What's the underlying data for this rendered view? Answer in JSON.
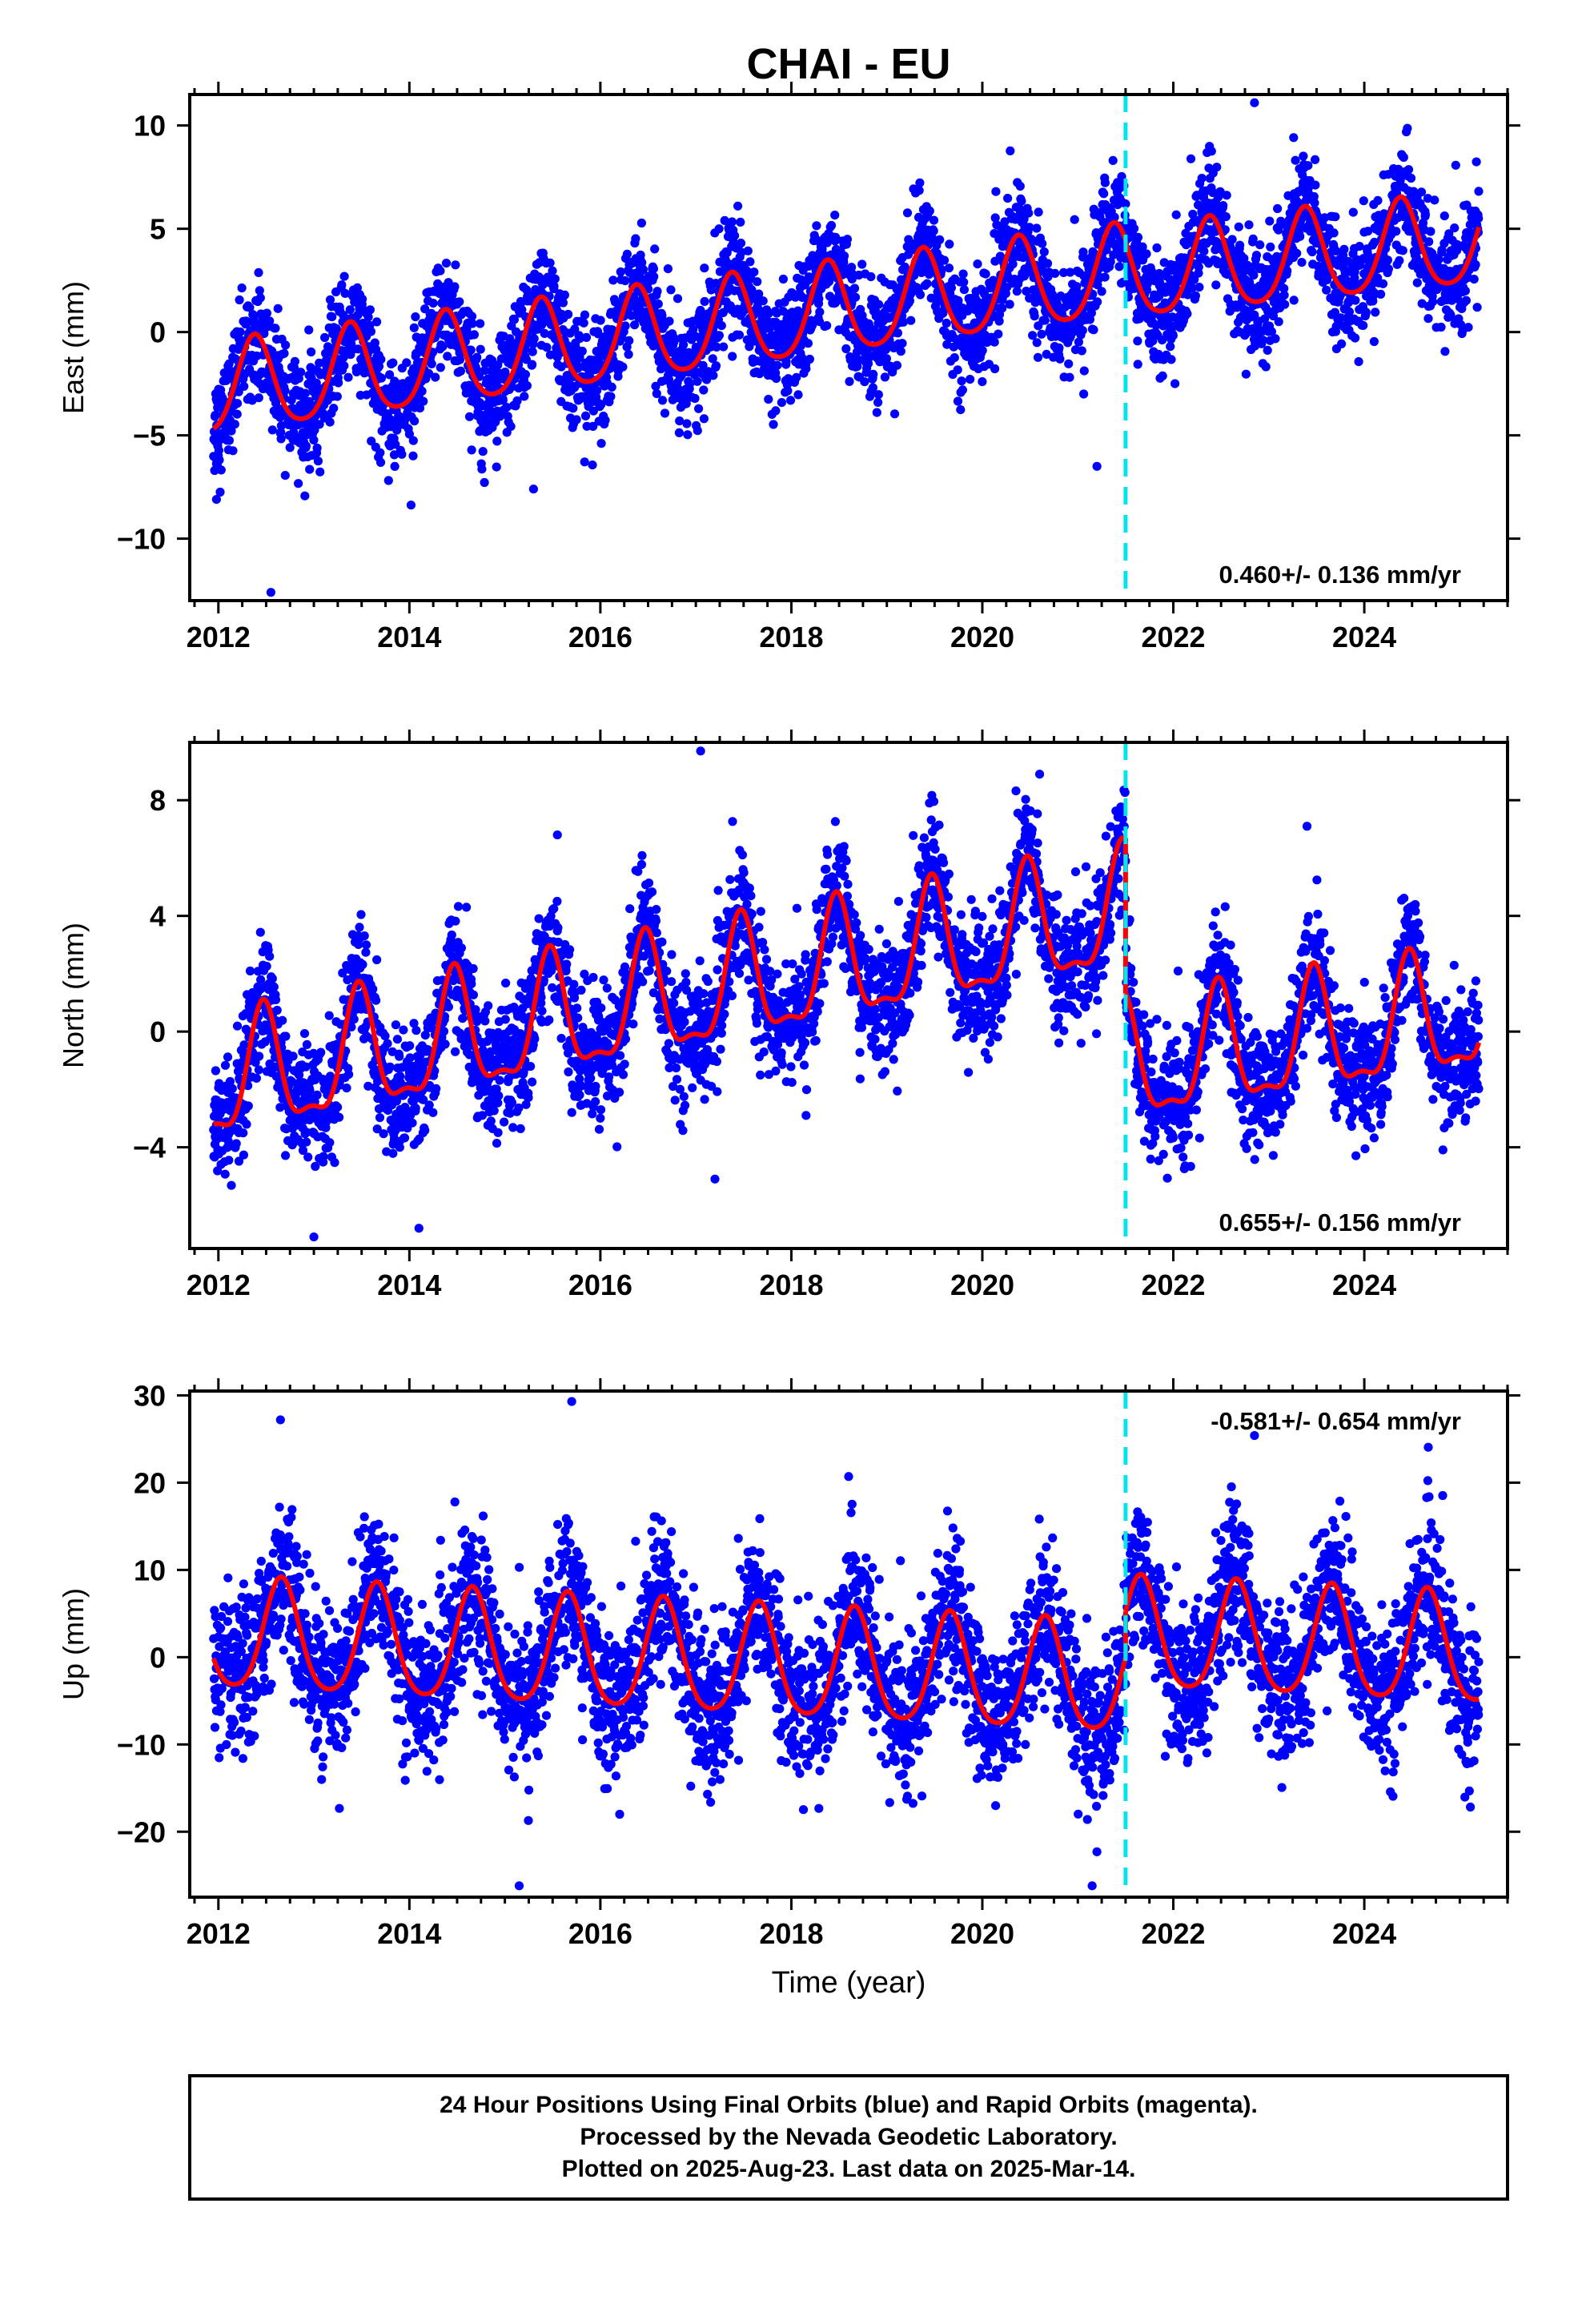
{
  "title": "CHAI - EU",
  "xlabel": "Time (year)",
  "colors": {
    "data": "#0000ff",
    "model": "#ff0000",
    "break": "#00e5ee",
    "frame": "#000000"
  },
  "footer": {
    "line1": "24 Hour Positions Using Final Orbits (blue) and Rapid Orbits (magenta).",
    "line2": "Processed by the Nevada Geodetic Laboratory.",
    "line3": "Plotted on 2025-Aug-23. Last data on 2025-Mar-14."
  },
  "chart_data": [
    {
      "type": "scatter",
      "component": "East",
      "ylabel": "East (mm)",
      "xlim": [
        2011.7,
        2025.5
      ],
      "ylim": [
        -13,
        11.5
      ],
      "xticks": [
        2012,
        2014,
        2016,
        2018,
        2020,
        2022,
        2024
      ],
      "yticks": [
        -10,
        -5,
        0,
        5,
        10
      ],
      "rate_label": "0.460+/- 0.136 mm/yr",
      "rate_position": "bottom-right",
      "break_epoch": 2021.5,
      "x_range_data": [
        2011.95,
        2025.2
      ],
      "scatter_sigma": 1.3,
      "model": {
        "segments": [
          {
            "x_start": 2011.95,
            "x_end": 2021.5,
            "offset": -2.9,
            "rate": 0.6
          },
          {
            "x_start": 2021.5,
            "x_end": 2025.2,
            "offset": 2.7,
            "rate": 0.45
          }
        ],
        "annual_amplitude": 2.2,
        "annual_peak_phase": 0.38,
        "semiannual_amplitude": 0.35
      },
      "outliers": [
        [
          2011.98,
          -8.1
        ],
        [
          2012.55,
          -12.6
        ],
        [
          2022.85,
          11.1
        ],
        [
          2021.2,
          -6.5
        ],
        [
          2015.3,
          -7.6
        ]
      ]
    },
    {
      "type": "scatter",
      "component": "North",
      "ylabel": "North (mm)",
      "xlim": [
        2011.7,
        2025.5
      ],
      "ylim": [
        -7.5,
        10
      ],
      "xticks": [
        2012,
        2014,
        2016,
        2018,
        2020,
        2022,
        2024
      ],
      "yticks": [
        -4,
        0,
        4,
        8
      ],
      "rate_label": "0.655+/- 0.156 mm/yr",
      "rate_position": "bottom-right",
      "break_epoch": 2021.5,
      "x_range_data": [
        2011.95,
        2025.2
      ],
      "scatter_sigma": 1.05,
      "model": {
        "segments": [
          {
            "x_start": 2011.95,
            "x_end": 2021.5,
            "offset": -1.9,
            "rate": 0.62
          },
          {
            "x_start": 2021.5,
            "x_end": 2025.2,
            "offset": -1.3,
            "rate": 0.5
          }
        ],
        "annual_amplitude": 2.0,
        "annual_peak_phase": 0.47,
        "semiannual_amplitude": 0.7
      },
      "outliers": [
        [
          2017.05,
          9.7
        ],
        [
          2020.6,
          8.9
        ],
        [
          2015.55,
          6.8
        ],
        [
          2023.4,
          7.1
        ],
        [
          2013.0,
          -7.1
        ],
        [
          2014.1,
          -6.8
        ],
        [
          2017.2,
          -5.1
        ]
      ]
    },
    {
      "type": "scatter",
      "component": "Up",
      "ylabel": "Up (mm)",
      "xlim": [
        2011.7,
        2025.5
      ],
      "ylim": [
        -27.5,
        30.5
      ],
      "xticks": [
        2012,
        2014,
        2016,
        2018,
        2020,
        2022,
        2024
      ],
      "yticks": [
        -20,
        -10,
        0,
        10,
        20,
        30
      ],
      "rate_label": "-0.581+/- 0.654 mm/yr",
      "rate_position": "top-right",
      "break_epoch": 2021.5,
      "x_range_data": [
        2011.95,
        2025.2
      ],
      "scatter_sigma": 4.2,
      "model": {
        "segments": [
          {
            "x_start": 2011.95,
            "x_end": 2021.5,
            "offset": 2.3,
            "rate": -0.55
          },
          {
            "x_start": 2021.5,
            "x_end": 2025.2,
            "offset": 2.3,
            "rate": -0.5
          }
        ],
        "annual_amplitude": 6.3,
        "annual_peak_phase": 0.66,
        "semiannual_amplitude": 1.0
      },
      "outliers": [
        [
          2012.65,
          27.2
        ],
        [
          2015.7,
          29.3
        ],
        [
          2022.85,
          25.4
        ],
        [
          2015.15,
          -26.2
        ],
        [
          2021.15,
          -26.2
        ],
        [
          2021.2,
          -22.3
        ],
        [
          2018.6,
          20.7
        ]
      ]
    }
  ]
}
